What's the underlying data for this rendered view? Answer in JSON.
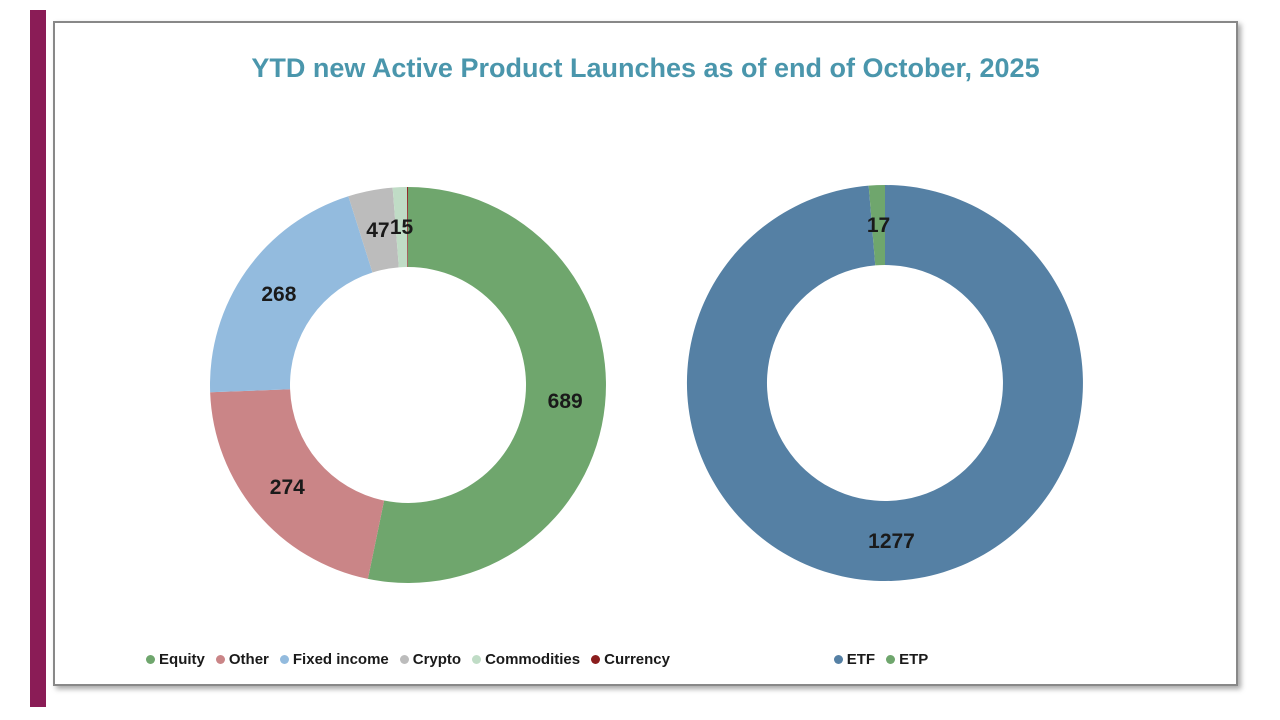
{
  "page": {
    "title": "YTD new Active Product Launches as of end of October, 2025"
  },
  "colors": {
    "accent_bar": "#8A1C56",
    "title_text": "#4A96AC",
    "panel_border": "#888888",
    "data_label_text": "#1A1A1A"
  },
  "chart_data": [
    {
      "type": "pie",
      "subtype": "donut",
      "name": "asset-class-donut",
      "title": "",
      "direction": "clockwise",
      "start_angle_deg": 0,
      "legend_position": "bottom",
      "total": 1294,
      "slices": [
        {
          "label": "Equity",
          "value": 689,
          "color": "#6FA66D",
          "data_label": "689"
        },
        {
          "label": "Other",
          "value": 274,
          "color": "#CA8587",
          "data_label": "274"
        },
        {
          "label": "Fixed income",
          "value": 268,
          "color": "#93BBDE",
          "data_label": "268"
        },
        {
          "label": "Crypto",
          "value": 47,
          "color": "#BCBCBC",
          "data_label": "47"
        },
        {
          "label": "Commodities",
          "value": 15,
          "color": "#C0DCC6",
          "data_label": "15"
        },
        {
          "label": "Currency",
          "value": 1,
          "color": "#8B1D1D",
          "data_label": ""
        }
      ]
    },
    {
      "type": "pie",
      "subtype": "donut",
      "name": "wrapper-donut",
      "title": "",
      "direction": "clockwise",
      "start_angle_deg": 0,
      "legend_position": "bottom",
      "total": 1294,
      "slices": [
        {
          "label": "ETF",
          "value": 1277,
          "color": "#5580A4",
          "data_label": "1277"
        },
        {
          "label": "ETP",
          "value": 17,
          "color": "#6FA66D",
          "data_label": "17"
        }
      ]
    }
  ]
}
